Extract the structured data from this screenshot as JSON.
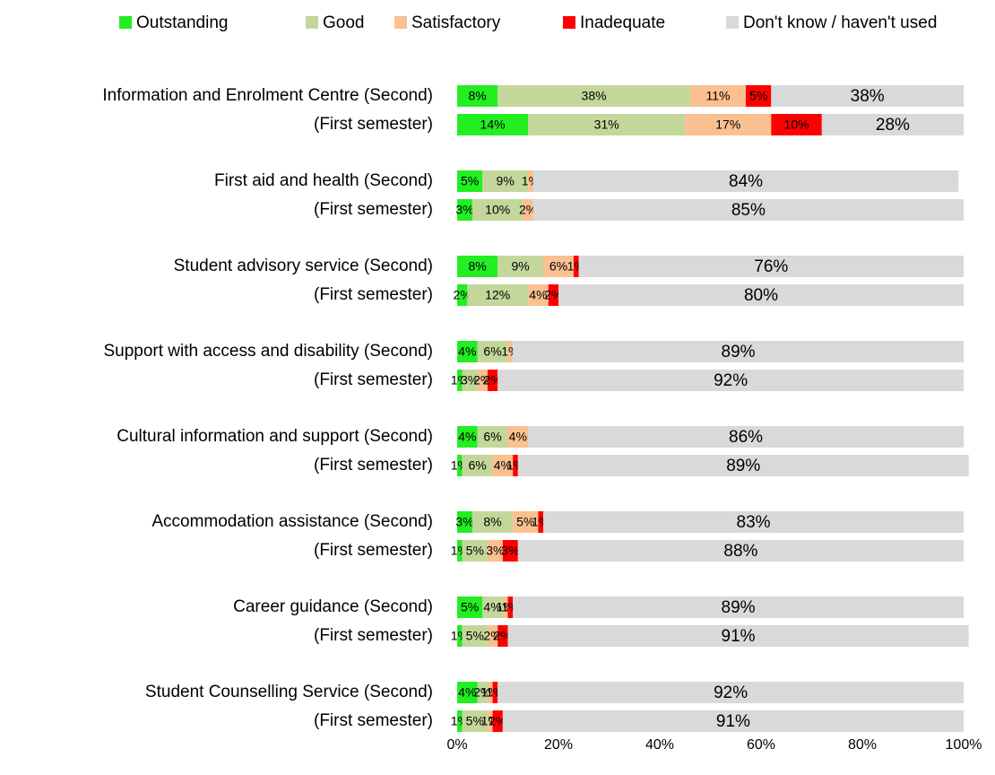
{
  "chart_data": {
    "type": "stacked_barh",
    "categories": [
      "Information and Enrolment Centre (Second)",
      "(First semester)",
      "First aid and health (Second)",
      "(First semester)",
      "Student advisory service (Second)",
      "(First semester)",
      "Support with access and disability (Second)",
      "(First semester)",
      "Cultural information and support (Second)",
      "(First semester)",
      "Accommodation assistance (Second)",
      "(First semester)",
      "Career guidance (Second)",
      "(First semester)",
      "Student Counselling Service (Second)",
      "(First semester)"
    ],
    "series": [
      {
        "name": "Outstanding",
        "color": "#22ee22",
        "values": [
          8,
          14,
          5,
          3,
          8,
          2,
          4,
          1,
          4,
          1,
          3,
          1,
          5,
          1,
          4,
          1
        ],
        "value_labels": [
          "8%",
          "14%",
          "5%",
          "3%",
          "8%",
          "2%",
          "4%",
          "1%",
          "4%",
          "1%",
          "3%",
          "1%",
          "5%",
          "1%",
          "4%",
          "1%"
        ]
      },
      {
        "name": "Good",
        "color": "#c4d79b",
        "values": [
          38,
          31,
          9,
          10,
          9,
          12,
          6,
          3,
          6,
          6,
          8,
          5,
          4,
          5,
          2,
          5
        ],
        "value_labels": [
          "38%",
          "31%",
          "9%",
          "10%",
          "9%",
          "12%",
          "6%",
          "3%",
          "6%",
          "6%",
          "8%",
          "5%",
          "4%",
          "5%",
          "2%",
          "5%"
        ]
      },
      {
        "name": "Satisfactory",
        "color": "#fac090",
        "values": [
          11,
          17,
          1,
          2,
          6,
          4,
          1,
          2,
          4,
          4,
          5,
          3,
          1,
          2,
          1,
          1
        ],
        "value_labels": [
          "11%",
          "17%",
          "1%",
          "2%",
          "6%",
          "4%",
          "1%",
          "2%",
          "4%",
          "4%",
          "5%",
          "3%",
          "1%",
          "2%",
          "1%",
          "1%"
        ]
      },
      {
        "name": "Inadequate",
        "color": "#ff0000",
        "values": [
          5,
          10,
          0,
          0,
          1,
          2,
          0,
          2,
          0,
          1,
          1,
          3,
          1,
          2,
          1,
          2
        ],
        "value_labels": [
          "5%",
          "10%",
          null,
          null,
          "1%",
          "2%",
          null,
          "2%",
          null,
          "1%",
          "1%",
          "3%",
          "1%",
          "2%",
          "1%",
          "2%"
        ]
      },
      {
        "name": "Don't know / haven't used",
        "color": "#d9d9d9",
        "values": [
          38,
          28,
          84,
          85,
          76,
          80,
          89,
          92,
          86,
          89,
          83,
          88,
          89,
          91,
          92,
          91
        ],
        "value_labels": [
          "38%",
          "28%",
          "84%",
          "85%",
          "76%",
          "80%",
          "89%",
          "92%",
          "86%",
          "89%",
          "83%",
          "88%",
          "89%",
          "91%",
          "92%",
          "91%"
        ]
      }
    ],
    "xlim": [
      0,
      100
    ],
    "xticks": [
      {
        "value": 0,
        "label": "0%"
      },
      {
        "value": 20,
        "label": "20%"
      },
      {
        "value": 40,
        "label": "40%"
      },
      {
        "value": 60,
        "label": "60%"
      },
      {
        "value": 80,
        "label": "80%"
      },
      {
        "value": 100,
        "label": "100%"
      }
    ],
    "legend": "top"
  }
}
